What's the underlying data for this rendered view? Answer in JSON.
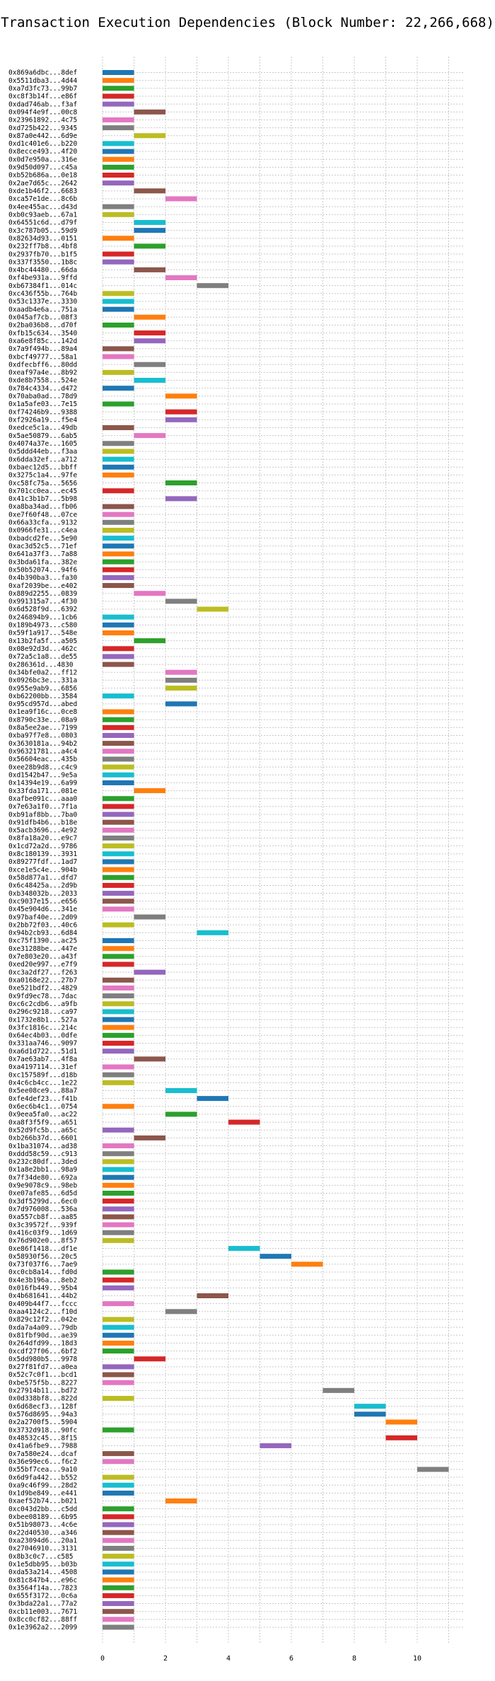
{
  "chart_data": {
    "type": "gantt",
    "title": "Transaction Execution Dependencies (Block Number: 22,266,668)",
    "xlabel": "",
    "ylabel": "",
    "xlim": [
      0,
      11.5
    ],
    "xticks": [
      0,
      2,
      4,
      6,
      8,
      10
    ],
    "grid": true,
    "palette": [
      "#1f77b4",
      "#ff7f0e",
      "#2ca02c",
      "#d62728",
      "#9467bd",
      "#8c564b",
      "#e377c2",
      "#7f7f7f",
      "#bcbd22",
      "#17becf"
    ],
    "rows": [
      {
        "tx": "0x869a6dbc...8def",
        "start": 0
      },
      {
        "tx": "0x5511dba3...4d44",
        "start": 0
      },
      {
        "tx": "0xa7d3fc73...99b7",
        "start": 0
      },
      {
        "tx": "0xc8f3b14f...e86f",
        "start": 0
      },
      {
        "tx": "0xdad746ab...f3af",
        "start": 0
      },
      {
        "tx": "0x094f4e9f...00c8",
        "start": 1
      },
      {
        "tx": "0x23961892...4c75",
        "start": 0
      },
      {
        "tx": "0xd725b422...9345",
        "start": 0
      },
      {
        "tx": "0x87a0e442...6d9e",
        "start": 1
      },
      {
        "tx": "0xd1c401e6...b220",
        "start": 0
      },
      {
        "tx": "0x8ecce493...4f20",
        "start": 0
      },
      {
        "tx": "0x0d7e950a...316e",
        "start": 0
      },
      {
        "tx": "0x9d50d097...c45a",
        "start": 0
      },
      {
        "tx": "0xb52b686a...0e18",
        "start": 0
      },
      {
        "tx": "0x2ae7d65c...2642",
        "start": 0
      },
      {
        "tx": "0xde1b46f2...6683",
        "start": 1
      },
      {
        "tx": "0xca57e1de...8c6b",
        "start": 2
      },
      {
        "tx": "0x4ee455ac...d43d",
        "start": 0
      },
      {
        "tx": "0xb0c93aeb...67a1",
        "start": 0
      },
      {
        "tx": "0x64551c6d...d79f",
        "start": 1
      },
      {
        "tx": "0x3c787b05...59d9",
        "start": 1
      },
      {
        "tx": "0x82634d93...0151",
        "start": 0
      },
      {
        "tx": "0x232ff7b8...4bf8",
        "start": 1
      },
      {
        "tx": "0x2937fb70...b1f5",
        "start": 0
      },
      {
        "tx": "0x337f3550...1b8c",
        "start": 0
      },
      {
        "tx": "0x4bc44480...66da",
        "start": 1
      },
      {
        "tx": "0xf4be931a...9ffd",
        "start": 2
      },
      {
        "tx": "0xb67384f1...014c",
        "start": 3
      },
      {
        "tx": "0xc436f55b...764b",
        "start": 0
      },
      {
        "tx": "0x53c1337e...3330",
        "start": 0
      },
      {
        "tx": "0xaadb4e6a...751a",
        "start": 0
      },
      {
        "tx": "0x045af7cb...08f3",
        "start": 1
      },
      {
        "tx": "0x2ba036b8...d70f",
        "start": 0
      },
      {
        "tx": "0xfb15c634...3540",
        "start": 1
      },
      {
        "tx": "0xa6e8f85c...142d",
        "start": 1
      },
      {
        "tx": "0x7a9f494b...89a4",
        "start": 0
      },
      {
        "tx": "0xbcf49777...58a1",
        "start": 0
      },
      {
        "tx": "0xdfecbff6...80dd",
        "start": 1
      },
      {
        "tx": "0xeaf97a4e...8b92",
        "start": 0
      },
      {
        "tx": "0xde8b7558...524e",
        "start": 1
      },
      {
        "tx": "0x784c4334...d472",
        "start": 0
      },
      {
        "tx": "0x70aba0ad...78d9",
        "start": 2
      },
      {
        "tx": "0x1a5afe03...7e15",
        "start": 0
      },
      {
        "tx": "0xf74246b9...9388",
        "start": 2
      },
      {
        "tx": "0xf2926a19...f5e4",
        "start": 2
      },
      {
        "tx": "0xedce5c1a...49db",
        "start": 0
      },
      {
        "tx": "0x5ae50879...6ab5",
        "start": 1
      },
      {
        "tx": "0x4074a37e...1605",
        "start": 0
      },
      {
        "tx": "0x5ddd44eb...f3aa",
        "start": 0
      },
      {
        "tx": "0x6dda32ef...a712",
        "start": 0
      },
      {
        "tx": "0xbaec12d5...bbff",
        "start": 0
      },
      {
        "tx": "0x3275c1a4...97fe",
        "start": 0
      },
      {
        "tx": "0xc58fc75a...5656",
        "start": 2
      },
      {
        "tx": "0x701cc0ea...ec45",
        "start": 0
      },
      {
        "tx": "0x41c3b1b7...5b98",
        "start": 2
      },
      {
        "tx": "0xa8ba34ad...fb06",
        "start": 0
      },
      {
        "tx": "0xe7f60f48...07ce",
        "start": 0
      },
      {
        "tx": "0x66a33cfa...9132",
        "start": 0
      },
      {
        "tx": "0x0966fe31...c4ea",
        "start": 0
      },
      {
        "tx": "0xbadcd2fe...5e90",
        "start": 0
      },
      {
        "tx": "0xac3d52c5...71ef",
        "start": 0
      },
      {
        "tx": "0x641a37f3...7a88",
        "start": 0
      },
      {
        "tx": "0x3bda61fa...382e",
        "start": 0
      },
      {
        "tx": "0x50b52074...94f6",
        "start": 0
      },
      {
        "tx": "0x4b390ba3...fa30",
        "start": 0
      },
      {
        "tx": "0xaf2039be...e402",
        "start": 0
      },
      {
        "tx": "0x889d2255...0839",
        "start": 1
      },
      {
        "tx": "0x991315a7...4f30",
        "start": 2
      },
      {
        "tx": "0x6d528f9d...6392",
        "start": 3
      },
      {
        "tx": "0x246894b9...1cb6",
        "start": 0
      },
      {
        "tx": "0x189b4973...c580",
        "start": 0
      },
      {
        "tx": "0x59f1a917...548e",
        "start": 0
      },
      {
        "tx": "0x13b2fa5f...a505",
        "start": 1
      },
      {
        "tx": "0x08e92d3d...462c",
        "start": 0
      },
      {
        "tx": "0x72a5c1a8...de55",
        "start": 0
      },
      {
        "tx": "0x286361d...4830",
        "start": 0
      },
      {
        "tx": "0x34bfe0a2...ff12",
        "start": 2
      },
      {
        "tx": "0x0926bc3e...331a",
        "start": 2
      },
      {
        "tx": "0x955e9ab9...6856",
        "start": 2
      },
      {
        "tx": "0xb62200bb...3584",
        "start": 0
      },
      {
        "tx": "0x95cd957d...abed",
        "start": 2
      },
      {
        "tx": "0x1ea9f16c...0ce8",
        "start": 0
      },
      {
        "tx": "0x8790c33e...08a9",
        "start": 0
      },
      {
        "tx": "0x8a5ee2ae...7199",
        "start": 0
      },
      {
        "tx": "0xba97f7e8...0803",
        "start": 0
      },
      {
        "tx": "0x3630181a...94b2",
        "start": 0
      },
      {
        "tx": "0x96321781...a4c4",
        "start": 0
      },
      {
        "tx": "0x56604eac...435b",
        "start": 0
      },
      {
        "tx": "0xee28b9d8...c4c9",
        "start": 0
      },
      {
        "tx": "0xd1542b47...9e5a",
        "start": 0
      },
      {
        "tx": "0x14394e19...6a99",
        "start": 0
      },
      {
        "tx": "0x33fda171...081e",
        "start": 1
      },
      {
        "tx": "0xafbe091c...aaa0",
        "start": 0
      },
      {
        "tx": "0x7e63a1f0...7f1a",
        "start": 0
      },
      {
        "tx": "0xb91af8bb...7ba0",
        "start": 0
      },
      {
        "tx": "0x91dfb4b6...b18e",
        "start": 0
      },
      {
        "tx": "0x5acb3696...4e92",
        "start": 0
      },
      {
        "tx": "0x8fa18a20...e9c7",
        "start": 0
      },
      {
        "tx": "0x1cd72a2d...9786",
        "start": 0
      },
      {
        "tx": "0x8c180139...3931",
        "start": 0
      },
      {
        "tx": "0x89277fdf...1ad7",
        "start": 0
      },
      {
        "tx": "0xce1e5c4e...904b",
        "start": 0
      },
      {
        "tx": "0x58d877a1...dfd7",
        "start": 0
      },
      {
        "tx": "0x6c48425a...2d9b",
        "start": 0
      },
      {
        "tx": "0xb348032b...2033",
        "start": 0
      },
      {
        "tx": "0xc9037e15...e656",
        "start": 0
      },
      {
        "tx": "0x45e904d6...341e",
        "start": 0
      },
      {
        "tx": "0x97baf40e...2d09",
        "start": 1
      },
      {
        "tx": "0x2bb72f03...40c6",
        "start": 0
      },
      {
        "tx": "0x94b2cb93...6d84",
        "start": 3
      },
      {
        "tx": "0xc75f1390...ac25",
        "start": 0
      },
      {
        "tx": "0xe31288be...447e",
        "start": 0
      },
      {
        "tx": "0x7e803e20...a43f",
        "start": 0
      },
      {
        "tx": "0xed20e997...e7f9",
        "start": 0
      },
      {
        "tx": "0xc3a2df27...f263",
        "start": 1
      },
      {
        "tx": "0xa0168e22...27b7",
        "start": 0
      },
      {
        "tx": "0xe521bdf2...4829",
        "start": 0
      },
      {
        "tx": "0x9fd9ec78...7dac",
        "start": 0
      },
      {
        "tx": "0xc6c2cdb6...a9fb",
        "start": 0
      },
      {
        "tx": "0x296c9218...ca97",
        "start": 0
      },
      {
        "tx": "0x1732e8b1...527a",
        "start": 0
      },
      {
        "tx": "0x3fc1816c...214c",
        "start": 0
      },
      {
        "tx": "0x64ec4b03...0dfe",
        "start": 0
      },
      {
        "tx": "0x331aa746...9097",
        "start": 0
      },
      {
        "tx": "0xa6d1d722...51d1",
        "start": 0
      },
      {
        "tx": "0x7ae63ab7...4f8a",
        "start": 1
      },
      {
        "tx": "0xa4197114...31ef",
        "start": 0
      },
      {
        "tx": "0xc157589f...d18b",
        "start": 0
      },
      {
        "tx": "0x4c6cb4cc...1e22",
        "start": 0
      },
      {
        "tx": "0x5ee08ce9...88a7",
        "start": 2
      },
      {
        "tx": "0xfe4def23...f41b",
        "start": 3
      },
      {
        "tx": "0x6ec6b4c1...0754",
        "start": 0
      },
      {
        "tx": "0x9eea5fa0...ac22",
        "start": 2
      },
      {
        "tx": "0xa8f3f5f9...a651",
        "start": 4
      },
      {
        "tx": "0x52d9fc5b...a65c",
        "start": 0
      },
      {
        "tx": "0xb266b37d...6601",
        "start": 1
      },
      {
        "tx": "0x1ba31074...ad38",
        "start": 0
      },
      {
        "tx": "0xddd58c59...c913",
        "start": 0
      },
      {
        "tx": "0x232c80df...3ded",
        "start": 0
      },
      {
        "tx": "0x1a8e2bb1...98a9",
        "start": 0
      },
      {
        "tx": "0x7f34de80...692a",
        "start": 0
      },
      {
        "tx": "0x9e9078c9...98eb",
        "start": 0
      },
      {
        "tx": "0xe07afe85...6d5d",
        "start": 0
      },
      {
        "tx": "0x3df5299d...6ec0",
        "start": 0
      },
      {
        "tx": "0x7d976008...536a",
        "start": 0
      },
      {
        "tx": "0xa557cb8f...aa85",
        "start": 0
      },
      {
        "tx": "0x3c39572f...939f",
        "start": 0
      },
      {
        "tx": "0x416c03f9...1d69",
        "start": 0
      },
      {
        "tx": "0x76d902e0...8f57",
        "start": 0
      },
      {
        "tx": "0xe86f1418...df1e",
        "start": 4
      },
      {
        "tx": "0x58930f56...20c5",
        "start": 5
      },
      {
        "tx": "0x73f037f6...7ae9",
        "start": 6
      },
      {
        "tx": "0xc0cb8a14...fd0d",
        "start": 0
      },
      {
        "tx": "0x4e3b196a...8eb2",
        "start": 0
      },
      {
        "tx": "0x016fb449...95b4",
        "start": 0
      },
      {
        "tx": "0x4b681641...44b2",
        "start": 3
      },
      {
        "tx": "0x409b44f7...fccc",
        "start": 0
      },
      {
        "tx": "0xaa4124c2...f10d",
        "start": 2
      },
      {
        "tx": "0x829c12f2...042e",
        "start": 0
      },
      {
        "tx": "0xda7a4a09...79db",
        "start": 0
      },
      {
        "tx": "0x81fbf90d...ae39",
        "start": 0
      },
      {
        "tx": "0x264dfd99...18d3",
        "start": 0
      },
      {
        "tx": "0xcdf27f06...6bf2",
        "start": 0
      },
      {
        "tx": "0x5dd980b5...9978",
        "start": 1
      },
      {
        "tx": "0x27f81fd7...a0ea",
        "start": 0
      },
      {
        "tx": "0x52c7c0f1...bcd1",
        "start": 0
      },
      {
        "tx": "0xbe575f5b...8227",
        "start": 0
      },
      {
        "tx": "0x27914b11...bd72",
        "start": 7
      },
      {
        "tx": "0x0d338bf8...822d",
        "start": 0
      },
      {
        "tx": "0x6d68ecf3...128f",
        "start": 8
      },
      {
        "tx": "0x576d8695...94a3",
        "start": 8
      },
      {
        "tx": "0x2a2700f5...5904",
        "start": 9
      },
      {
        "tx": "0x3732d918...90fc",
        "start": 0
      },
      {
        "tx": "0x48532c45...8f15",
        "start": 9
      },
      {
        "tx": "0x41a6fbe9...7988",
        "start": 5
      },
      {
        "tx": "0x7a580e24...dcaf",
        "start": 0
      },
      {
        "tx": "0x36e99ec6...f6c2",
        "start": 0
      },
      {
        "tx": "0x55bf7cea...9a10",
        "start": 10
      },
      {
        "tx": "0x6d9fa442...b552",
        "start": 0
      },
      {
        "tx": "0xa9c46f99...28d2",
        "start": 0
      },
      {
        "tx": "0x1d9be849...e441",
        "start": 0
      },
      {
        "tx": "0xaef52b74...b021",
        "start": 2
      },
      {
        "tx": "0xc043d2bb...c5dd",
        "start": 0
      },
      {
        "tx": "0xbee08189...6b95",
        "start": 0
      },
      {
        "tx": "0x51b98073...4c6e",
        "start": 0
      },
      {
        "tx": "0x22d40530...a346",
        "start": 0
      },
      {
        "tx": "0xa23094d6...20a1",
        "start": 0
      },
      {
        "tx": "0x27046910...3131",
        "start": 0
      },
      {
        "tx": "0x8b3c0c7...c585",
        "start": 0
      },
      {
        "tx": "0x1e5dbb95...b03b",
        "start": 0
      },
      {
        "tx": "0xda53a214...4508",
        "start": 0
      },
      {
        "tx": "0x81c847b4...e96c",
        "start": 0
      },
      {
        "tx": "0x3564f14a...7823",
        "start": 0
      },
      {
        "tx": "0x655f3172...0c6a",
        "start": 0
      },
      {
        "tx": "0x3bda22a1...77a2",
        "start": 0
      },
      {
        "tx": "0xcb11e003...7671",
        "start": 0
      },
      {
        "tx": "0x8cc0cf82...88ff",
        "start": 0
      },
      {
        "tx": "0x1e3962a2...2099",
        "start": 0
      }
    ]
  }
}
